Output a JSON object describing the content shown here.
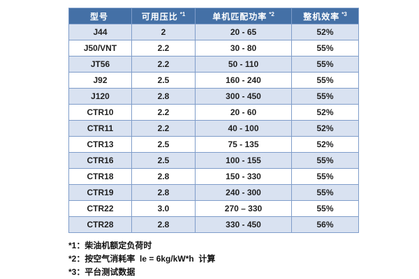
{
  "colors": {
    "header_bg": "#4470a6",
    "band_bg": "#d9e2f1",
    "border_color": "#7e9cc9",
    "body_text": "#1f1f1f",
    "header_text": "#ffffff"
  },
  "table": {
    "headers": [
      {
        "label": "型号",
        "sup": ""
      },
      {
        "label": "可用压比",
        "sup": "*1"
      },
      {
        "label": "单机匹配功率",
        "sup": "*2"
      },
      {
        "label": "整机效率",
        "sup": "*3"
      }
    ],
    "rows": [
      {
        "model": "J44",
        "ratio": "2",
        "power": "20 - 65",
        "eff": "52%"
      },
      {
        "model": "J50/VNT",
        "ratio": "2.2",
        "power": "30 - 80",
        "eff": "55%"
      },
      {
        "model": "JT56",
        "ratio": "2.2",
        "power": "50 - 110",
        "eff": "55%"
      },
      {
        "model": "J92",
        "ratio": "2.5",
        "power": "160 - 240",
        "eff": "55%"
      },
      {
        "model": "J120",
        "ratio": "2.8",
        "power": "300 - 450",
        "eff": "55%"
      },
      {
        "model": "CTR10",
        "ratio": "2.2",
        "power": "20 - 60",
        "eff": "52%"
      },
      {
        "model": "CTR11",
        "ratio": "2.2",
        "power": "40 - 100",
        "eff": "52%"
      },
      {
        "model": "CTR13",
        "ratio": "2.5",
        "power": "75 - 135",
        "eff": "52%"
      },
      {
        "model": "CTR16",
        "ratio": "2.5",
        "power": "100 - 155",
        "eff": "55%"
      },
      {
        "model": "CTR18",
        "ratio": "2.8",
        "power": "150 - 330",
        "eff": "55%"
      },
      {
        "model": "CTR19",
        "ratio": "2.8",
        "power": "240 - 300",
        "eff": "55%"
      },
      {
        "model": "CTR22",
        "ratio": "3.0",
        "power": "270 – 330",
        "eff": "55%"
      },
      {
        "model": "CTR28",
        "ratio": "2.8",
        "power": "330 - 450",
        "eff": "56%"
      }
    ]
  },
  "footnotes": [
    {
      "text": "*1：柴油机额定负荷时"
    },
    {
      "text": "*2：按空气消耗率  le = 6kg/kW*h  计算"
    },
    {
      "text": "*3：平台测试数据"
    }
  ]
}
